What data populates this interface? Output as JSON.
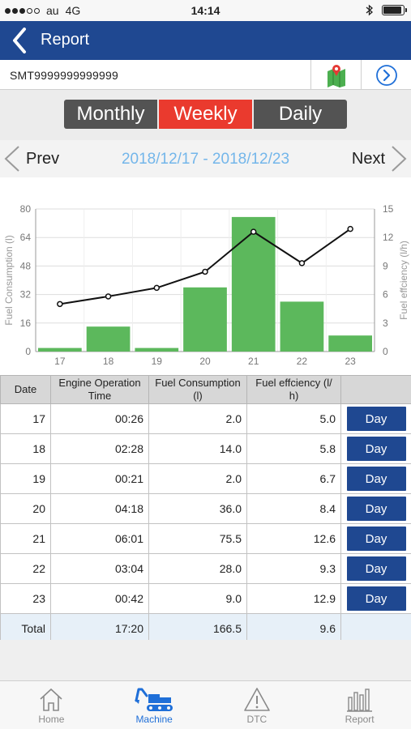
{
  "status_bar": {
    "carrier": "au",
    "network": "4G",
    "time": "14:14",
    "battery_level": 0.9
  },
  "nav": {
    "title": "Report",
    "back_icon": "chevron-left-icon"
  },
  "machine": {
    "id": "SMT9999999999999",
    "map_icon": "map-pin-icon",
    "go_icon": "circle-chevron-right-icon"
  },
  "period": {
    "options": [
      "Monthly",
      "Weekly",
      "Daily"
    ],
    "selected": "Weekly"
  },
  "week_nav": {
    "prev_label": "Prev",
    "next_label": "Next",
    "range": "2018/12/17 - 2018/12/23"
  },
  "colors": {
    "nav_blue": "#1f4891",
    "active_red": "#ea3a2e",
    "bar_green": "#5cb85c",
    "range_blue": "#73b6ea",
    "total_row": "#e7f0f8"
  },
  "chart_data": {
    "type": "bar",
    "categories": [
      "17",
      "18",
      "19",
      "20",
      "21",
      "22",
      "23"
    ],
    "series": [
      {
        "type": "bar",
        "axis": "left",
        "values": [
          2.0,
          14.0,
          2.0,
          36.0,
          75.5,
          28.0,
          9.0
        ]
      },
      {
        "type": "line",
        "axis": "right",
        "values": [
          5.0,
          5.8,
          6.7,
          8.4,
          12.6,
          9.3,
          12.9
        ]
      }
    ],
    "ylabel": "Fuel Consumption (l)",
    "y2label": "Fuel effciency (l/h)",
    "ylim": [
      0,
      80
    ],
    "y2lim": [
      0,
      15
    ],
    "yticks": [
      0,
      16,
      32,
      48,
      64,
      80
    ],
    "y2ticks": [
      0,
      3,
      6,
      9,
      12,
      15
    ],
    "grid": true
  },
  "table": {
    "headers": [
      "Date",
      "Engine Operation Time",
      "Fuel Consumption (l)",
      "Fuel effciency (l/ h)",
      ""
    ],
    "day_button_label": "Day",
    "rows": [
      {
        "date": "17",
        "time": "00:26",
        "fuel": "2.0",
        "efficiency": "5.0"
      },
      {
        "date": "18",
        "time": "02:28",
        "fuel": "14.0",
        "efficiency": "5.8"
      },
      {
        "date": "19",
        "time": "00:21",
        "fuel": "2.0",
        "efficiency": "6.7"
      },
      {
        "date": "20",
        "time": "04:18",
        "fuel": "36.0",
        "efficiency": "8.4"
      },
      {
        "date": "21",
        "time": "06:01",
        "fuel": "75.5",
        "efficiency": "12.6"
      },
      {
        "date": "22",
        "time": "03:04",
        "fuel": "28.0",
        "efficiency": "9.3"
      },
      {
        "date": "23",
        "time": "00:42",
        "fuel": "9.0",
        "efficiency": "12.9"
      }
    ],
    "total": {
      "label": "Total",
      "time": "17:20",
      "fuel": "166.5",
      "efficiency": "9.6"
    }
  },
  "tabs": [
    {
      "label": "Home",
      "icon": "home-icon",
      "active": false
    },
    {
      "label": "Machine",
      "icon": "excavator-icon",
      "active": true
    },
    {
      "label": "DTC",
      "icon": "warning-triangle-icon",
      "active": false
    },
    {
      "label": "Report",
      "icon": "bar-chart-icon",
      "active": false
    }
  ]
}
